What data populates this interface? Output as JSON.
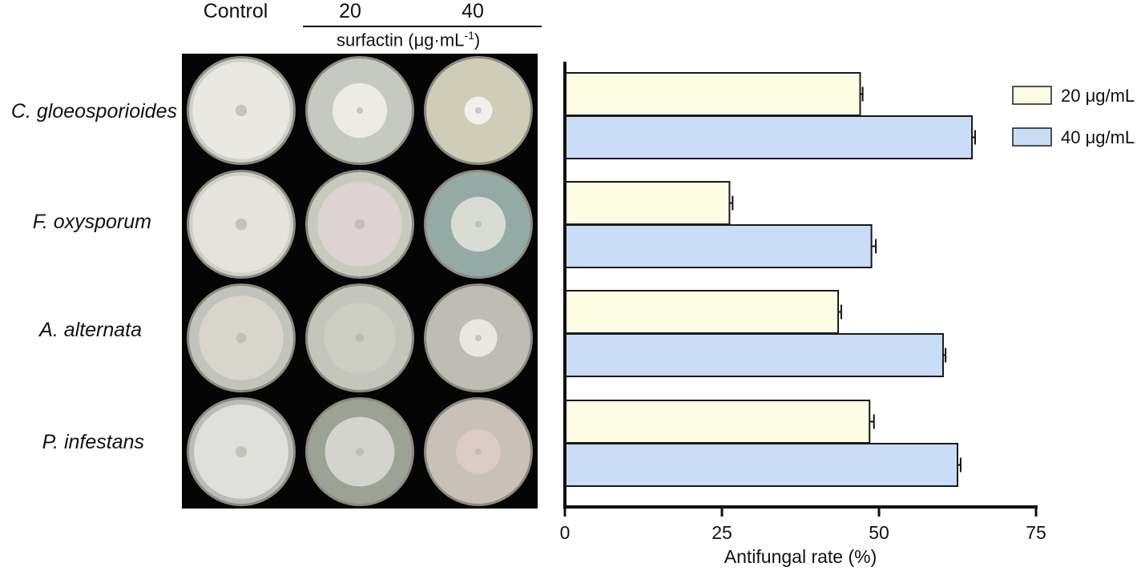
{
  "panel": {
    "col_headers": [
      "Control",
      "20",
      "40"
    ],
    "treatment_label": "surfactin",
    "unit_prefix": "(μg·mL",
    "unit_exponent": "-1",
    "unit_suffix": ")",
    "organisms": [
      "C. gloeosporioides",
      "F. oxysporum",
      "A. alternata",
      "P. infestans"
    ]
  },
  "colors": {
    "series_20": "#fdfde3",
    "series_40": "#c9ddf7",
    "bar_stroke": "#1a1a1a",
    "plate_background": "#050505"
  },
  "plates": [
    {
      "row": "C. gloeosporioides",
      "dose": "Control",
      "colony_fraction": 0.98,
      "agar": "#cdd0c4",
      "colony": "#e9e8e2"
    },
    {
      "row": "C. gloeosporioides",
      "dose": "20",
      "colony_fraction": 0.55,
      "agar": "#c6c9bf",
      "colony": "#ecebe6"
    },
    {
      "row": "C. gloeosporioides",
      "dose": "40",
      "colony_fraction": 0.28,
      "agar": "#cfcdb8",
      "colony": "#f1f0ed"
    },
    {
      "row": "F. oxysporum",
      "dose": "Control",
      "colony_fraction": 0.98,
      "agar": "#cfd0c6",
      "colony": "#e4e3dc"
    },
    {
      "row": "F. oxysporum",
      "dose": "20",
      "colony_fraction": 0.85,
      "agar": "#c9cabf",
      "colony": "#dcd3d2"
    },
    {
      "row": "F. oxysporum",
      "dose": "40",
      "colony_fraction": 0.55,
      "agar": "#94aaa5",
      "colony": "#d9dcd2"
    },
    {
      "row": "A. alternata",
      "dose": "Control",
      "colony_fraction": 0.85,
      "agar": "#c2c4bb",
      "colony": "#d8d6ca"
    },
    {
      "row": "A. alternata",
      "dose": "20",
      "colony_fraction": 0.72,
      "agar": "#c4c6bc",
      "colony": "#cdcfc1"
    },
    {
      "row": "A. alternata",
      "dose": "40",
      "colony_fraction": 0.38,
      "agar": "#bdbdb3",
      "colony": "#eae7df"
    },
    {
      "row": "P. infestans",
      "dose": "Control",
      "colony_fraction": 0.95,
      "agar": "#b9bcb8",
      "colony": "#dfe0dc"
    },
    {
      "row": "P. infestans",
      "dose": "20",
      "colony_fraction": 0.7,
      "agar": "#9da394",
      "colony": "#d3d5cc"
    },
    {
      "row": "P. infestans",
      "dose": "40",
      "colony_fraction": 0.45,
      "agar": "#c9c0b7",
      "colony": "#dccbc5"
    }
  ],
  "chart_data": {
    "type": "bar",
    "orientation": "horizontal",
    "categories": [
      "C. gloeosporioides",
      "F. oxysporum",
      "A. alternata",
      "P. infestans"
    ],
    "series": [
      {
        "name": "20 μg/mL",
        "values": [
          47.0,
          26.2,
          43.5,
          48.5
        ],
        "errors": [
          0.4,
          0.5,
          0.5,
          0.7
        ]
      },
      {
        "name": "40 μg/mL",
        "values": [
          64.8,
          48.8,
          60.2,
          62.5
        ],
        "errors": [
          0.5,
          0.7,
          0.4,
          0.5
        ]
      }
    ],
    "xlabel": "Antifungal rate (%)",
    "xlim": [
      0,
      75
    ],
    "xticks": [
      "0",
      "25",
      "50",
      "75"
    ],
    "grid": false,
    "legend_position": "top-right"
  }
}
